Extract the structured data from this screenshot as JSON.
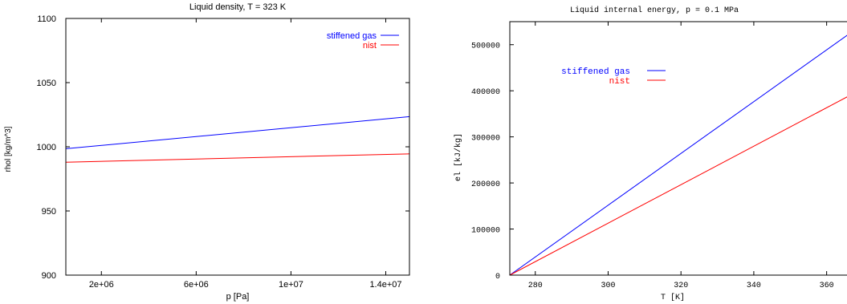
{
  "chart_data": [
    {
      "type": "line",
      "title": "Liquid density, T = 323 K",
      "xlabel": "p [Pa]",
      "ylabel": "rhol [kg/m^3]",
      "xlim": [
        500000,
        15000000
      ],
      "ylim": [
        900,
        1100
      ],
      "xticks": [
        2000000,
        6000000,
        10000000,
        14000000
      ],
      "xtick_labels": [
        "2e+06",
        "6e+06",
        "1e+07",
        "1.4e+07"
      ],
      "yticks": [
        900,
        950,
        1000,
        1050,
        1100
      ],
      "ytick_labels": [
        "900",
        "950",
        "1000",
        "1050",
        "1100"
      ],
      "legend_position": "top-right",
      "series": [
        {
          "name": "stiffened gas",
          "color": "#0000ff",
          "x": [
            500000,
            15000000
          ],
          "y": [
            998.5,
            1023.5
          ]
        },
        {
          "name": "nist",
          "color": "#ff0000",
          "x": [
            500000,
            15000000
          ],
          "y": [
            988.0,
            994.5
          ]
        }
      ]
    },
    {
      "type": "line",
      "title": "Liquid internal energy, p = 0.1 MPa",
      "xlabel": "T [K]",
      "ylabel": "el [kJ/kg]",
      "xlim": [
        273,
        370
      ],
      "ylim": [
        0,
        550000
      ],
      "xticks": [
        280,
        300,
        320,
        340,
        360
      ],
      "xtick_labels": [
        "280",
        "300",
        "320",
        "340",
        "360"
      ],
      "yticks": [
        0,
        100000,
        200000,
        300000,
        400000,
        500000
      ],
      "ytick_labels": [
        "0",
        "100000",
        "200000",
        "300000",
        "400000",
        "500000"
      ],
      "legend_position": "top-left",
      "series": [
        {
          "name": "stiffened gas",
          "color": "#0000ff",
          "x": [
            273,
            370
          ],
          "y": [
            0,
            545000
          ]
        },
        {
          "name": "nist",
          "color": "#ff0000",
          "x": [
            273,
            370
          ],
          "y": [
            0,
            405000
          ]
        }
      ]
    }
  ]
}
